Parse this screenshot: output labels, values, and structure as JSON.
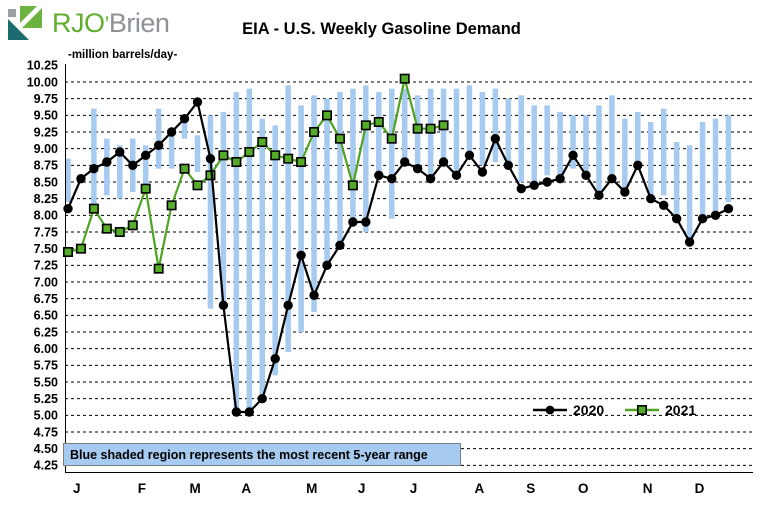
{
  "header": {
    "logo": {
      "text_primary": "RJO",
      "apostrophe": "’",
      "text_secondary": "Brien"
    },
    "title": "EIA - U.S. Weekly Gasoline Demand"
  },
  "note": {
    "text": "Blue shaded region represents the most recent 5-year range",
    "bg_color": "#A6CAF0"
  },
  "colors": {
    "range_bar": "#A6CAF0",
    "series_2020": "#000000",
    "series_2021": "#4EA321",
    "marker_2021_fill": "#55AC28",
    "grid": "#000000",
    "logo_green": "#6CB33F",
    "logo_teal": "#1C6B70",
    "logo_gray": "#98A0A3"
  },
  "chart_data": {
    "type": "line",
    "title": "EIA - U.S. Weekly Gasoline Demand",
    "ylabel": "-million barrels/day-",
    "xlabel": "",
    "ylim": [
      4.25,
      10.25
    ],
    "ytick_step": 0.25,
    "grid": "dashed-horizontal",
    "legend_position": "inside-bottom-right",
    "yticks": [
      "10.25",
      "10.00",
      "9.75",
      "9.50",
      "9.25",
      "9.00",
      "8.75",
      "8.50",
      "8.25",
      "8.00",
      "7.75",
      "7.50",
      "7.25",
      "7.00",
      "6.75",
      "6.50",
      "6.25",
      "6.00",
      "5.75",
      "5.50",
      "5.25",
      "5.00",
      "4.75",
      "4.50",
      "4.25"
    ],
    "x_months": [
      "J",
      "F",
      "M",
      "A",
      "M",
      "J",
      "J",
      "A",
      "S",
      "O",
      "N",
      "D"
    ],
    "month_start_weeks": [
      1,
      6,
      10,
      14,
      19,
      23,
      27,
      32,
      36,
      40,
      45,
      49
    ],
    "weeks_per_year": 52,
    "series": [
      {
        "name": "2020",
        "marker": "circle",
        "color": "#000000",
        "values": [
          8.1,
          8.55,
          8.7,
          8.8,
          8.95,
          8.75,
          8.9,
          9.05,
          9.25,
          9.45,
          9.7,
          8.85,
          6.65,
          5.05,
          5.05,
          5.25,
          5.85,
          6.65,
          7.4,
          6.8,
          7.25,
          7.55,
          7.9,
          7.9,
          8.6,
          8.55,
          8.8,
          8.7,
          8.55,
          8.8,
          8.6,
          8.9,
          8.65,
          9.15,
          8.75,
          8.4,
          8.45,
          8.5,
          8.55,
          8.9,
          8.6,
          8.3,
          8.55,
          8.35,
          8.75,
          8.25,
          8.15,
          7.95,
          7.6,
          7.95,
          8.0,
          8.1
        ]
      },
      {
        "name": "2021",
        "marker": "square",
        "color": "#4EA321",
        "values": [
          7.45,
          7.5,
          8.1,
          7.8,
          7.75,
          7.85,
          8.4,
          7.2,
          8.15,
          8.7,
          8.45,
          8.6,
          8.9,
          8.8,
          8.95,
          9.1,
          8.9,
          8.85,
          8.8,
          9.25,
          9.5,
          9.15,
          8.45,
          9.35,
          9.4,
          9.15,
          10.05,
          9.3,
          9.3,
          9.35
        ]
      }
    ],
    "range_bars": {
      "label": "5-year range",
      "color": "#A6CAF0",
      "top": [
        8.85,
        null,
        9.6,
        9.15,
        9.05,
        9.15,
        9.05,
        9.6,
        9.25,
        9.5,
        9.2,
        9.5,
        9.55,
        9.85,
        9.9,
        9.45,
        9.35,
        9.95,
        9.65,
        9.8,
        9.75,
        9.85,
        9.9,
        9.95,
        9.85,
        9.9,
        9.9,
        9.8,
        9.9,
        9.9,
        9.9,
        9.95,
        9.85,
        9.9,
        9.75,
        9.8,
        9.65,
        9.65,
        9.55,
        9.5,
        9.5,
        9.65,
        9.8,
        9.45,
        9.55,
        9.4,
        9.6,
        9.1,
        9.05,
        9.4,
        9.45,
        9.5
      ],
      "bottom": [
        8.2,
        null,
        8.1,
        8.3,
        8.25,
        8.35,
        8.35,
        8.7,
        8.7,
        9.15,
        8.65,
        6.6,
        6.6,
        5.0,
        5.1,
        5.3,
        5.6,
        5.95,
        6.25,
        6.55,
        7.2,
        7.55,
        7.9,
        7.75,
        8.55,
        7.95,
        8.8,
        8.7,
        8.6,
        8.85,
        8.65,
        8.9,
        8.75,
        8.8,
        8.75,
        8.5,
        8.5,
        8.6,
        8.5,
        8.7,
        8.6,
        8.3,
        8.55,
        8.35,
        8.8,
        8.25,
        8.3,
        8.0,
        7.6,
        8.0,
        8.05,
        8.2
      ]
    }
  }
}
